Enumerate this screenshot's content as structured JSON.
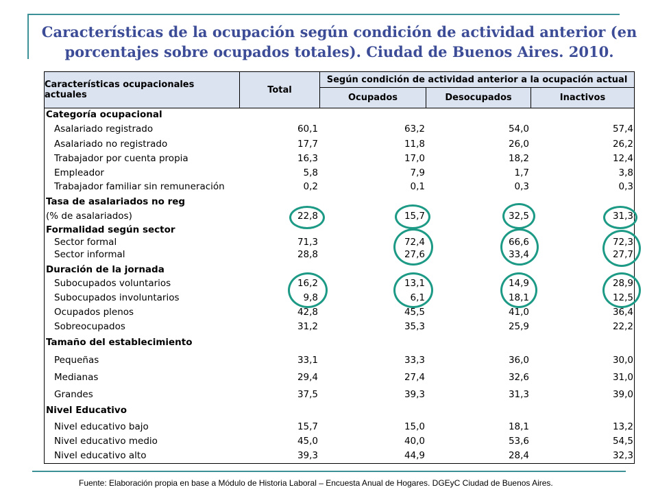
{
  "title": "Características de la ocupación según condición de actividad anterior (en porcentajes sobre ocupados totales).  Ciudad de Buenos Aires. 2010.",
  "table": {
    "header_main": "Características ocupacionales actuales",
    "header_total": "Total",
    "header_group": "Según condición de actividad anterior a la ocupación actual",
    "header_cols": [
      "Ocupados",
      "Desocupados",
      "Inactivos"
    ],
    "rows": [
      {
        "label": "Categoría ocupacional",
        "type": "section"
      },
      {
        "label": "Asalariado registrado",
        "type": "item",
        "values": [
          "60,1",
          "63,2",
          "54,0",
          "57,4"
        ]
      },
      {
        "label": "Asalariado no registrado",
        "type": "item",
        "values": [
          "17,7",
          "11,8",
          "26,0",
          "26,2"
        ]
      },
      {
        "label": "Trabajador por cuenta propia",
        "type": "item",
        "values": [
          "16,3",
          "17,0",
          "18,2",
          "12,4"
        ]
      },
      {
        "label": "Empleador",
        "type": "item",
        "values": [
          "5,8",
          "7,9",
          "1,7",
          "3,8"
        ]
      },
      {
        "label": "Trabajador familiar sin remuneración",
        "type": "item",
        "values": [
          "0,2",
          "0,1",
          "0,3",
          "0,3"
        ]
      },
      {
        "label": "Tasa de asalariados no reg",
        "type": "section"
      },
      {
        "label": "(% de asalariados)",
        "type": "plain",
        "values": [
          "22,8",
          "15,7",
          "32,5",
          "31,3"
        ]
      },
      {
        "label": "Formalidad según sector",
        "type": "section"
      },
      {
        "label": "Sector formal",
        "type": "item",
        "values": [
          "71,3",
          "72,4",
          "66,6",
          "72,3"
        ]
      },
      {
        "label": "Sector informal",
        "type": "item",
        "values": [
          "28,8",
          "27,6",
          "33,4",
          "27,7"
        ]
      },
      {
        "label": "Duración de la jornada",
        "type": "section"
      },
      {
        "label": "Subocupados voluntarios",
        "type": "item",
        "values": [
          "16,2",
          "13,1",
          "14,9",
          "28,9"
        ]
      },
      {
        "label": "Subocupados involuntarios",
        "type": "item",
        "values": [
          "9,8",
          "6,1",
          "18,1",
          "12,5"
        ]
      },
      {
        "label": "Ocupados plenos",
        "type": "item",
        "values": [
          "42,8",
          "45,5",
          "41,0",
          "36,4"
        ]
      },
      {
        "label": "Sobreocupados",
        "type": "item",
        "values": [
          "31,2",
          "35,3",
          "25,9",
          "22,2"
        ]
      },
      {
        "label": "Tamaño del establecimiento",
        "type": "section"
      },
      {
        "label": "Pequeñas",
        "type": "item",
        "values": [
          "33,1",
          "33,3",
          "36,0",
          "30,0"
        ]
      },
      {
        "label": "Medianas",
        "type": "item",
        "values": [
          "29,4",
          "27,4",
          "32,6",
          "31,0"
        ]
      },
      {
        "label": "Grandes",
        "type": "item",
        "values": [
          "37,5",
          "39,3",
          "31,3",
          "39,0"
        ]
      },
      {
        "label": "Nivel Educativo",
        "type": "section"
      },
      {
        "label": "Nivel educativo bajo",
        "type": "item",
        "values": [
          "15,7",
          "15,0",
          "18,1",
          "13,2"
        ]
      },
      {
        "label": "Nivel educativo medio",
        "type": "item",
        "values": [
          "45,0",
          "40,0",
          "53,6",
          "54,5"
        ]
      },
      {
        "label": "Nivel educativo alto",
        "type": "item",
        "values": [
          "39,3",
          "44,9",
          "28,4",
          "32,3"
        ]
      }
    ]
  },
  "footer": "Fuente: Elaboración propia en base a Módulo de Historia Laboral – Encuesta Anual de Hogares. DGEyC Ciudad de Buenos Aires.",
  "colors": {
    "title": "#3c4c96",
    "rule": "#3b8f97",
    "header_bg": "#dbe3f1",
    "highlight_circle": "#1d9a86"
  }
}
